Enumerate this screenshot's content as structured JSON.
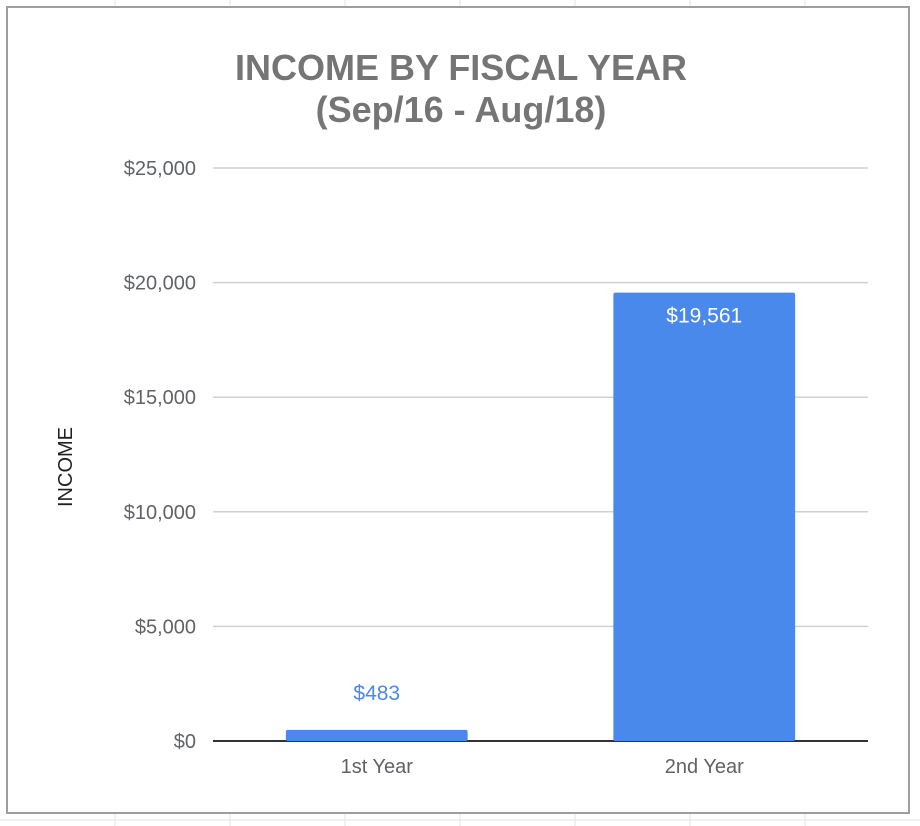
{
  "colors": {
    "bar": "#4a89ec",
    "label_outside": "#4a89ec",
    "label_inside": "#ffffff",
    "gridline": "#d0d0d0",
    "baseline": "#333333",
    "title": "#757575"
  },
  "chart_data": {
    "type": "bar",
    "title": "INCOME BY FISCAL YEAR",
    "subtitle": "(Sep/16 - Aug/18)",
    "xlabel": "",
    "ylabel": "INCOME",
    "categories": [
      "1st Year",
      "2nd Year"
    ],
    "values": [
      483,
      19561
    ],
    "data_labels": [
      "$483",
      "$19,561"
    ],
    "ylim": [
      0,
      25000
    ],
    "yticks": [
      0,
      5000,
      10000,
      15000,
      20000,
      25000
    ],
    "ytick_labels": [
      "$0",
      "$5,000",
      "$10,000",
      "$15,000",
      "$20,000",
      "$25,000"
    ],
    "grid": true,
    "legend": "none"
  }
}
